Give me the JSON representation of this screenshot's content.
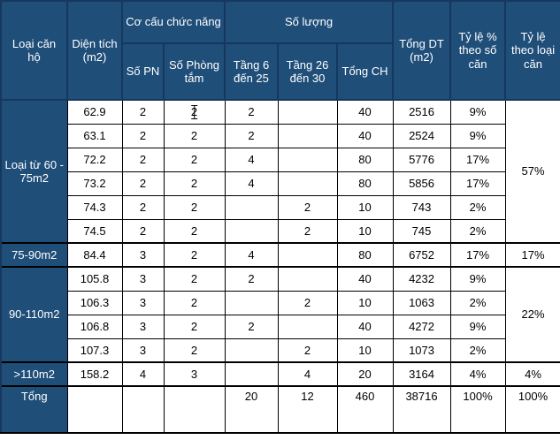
{
  "colors": {
    "header_bg": "#1F4E79",
    "header_border": "#17375E",
    "header_text": "#FFFFFF",
    "grid_border": "#000000",
    "cell_bg": "#FFFFFF",
    "cell_text": "#000000"
  },
  "table": {
    "header": {
      "unit_type": "Loại căn hộ",
      "area": "Diện tích (m2)",
      "function_structure": "Cơ cấu chức năng",
      "bedrooms": "Số PN",
      "bathrooms": "Số Phòng tắm",
      "quantity": "Số lượng",
      "floors_6_25": "Tầng 6 đến 25",
      "floors_26_30": "Tầng 26 đến 30",
      "total_units": "Tổng CH",
      "total_area": "Tổng DT (m2)",
      "pct_by_units": "Tỷ lệ % theo số căn",
      "pct_by_type": "Tỷ lệ theo loại căn"
    },
    "groups": [
      {
        "label": "Loại từ 60 - 75m2",
        "pct_by_type": "57%",
        "rows": [
          {
            "area": "62.9",
            "bedrooms": "2",
            "bathrooms": "2",
            "floors_6_25": "2",
            "floors_26_30": "",
            "total_units": "40",
            "total_area": "2516",
            "pct_units": "9%",
            "edit_caret": true
          },
          {
            "area": "63.1",
            "bedrooms": "2",
            "bathrooms": "2",
            "floors_6_25": "2",
            "floors_26_30": "",
            "total_units": "40",
            "total_area": "2524",
            "pct_units": "9%"
          },
          {
            "area": "72.2",
            "bedrooms": "2",
            "bathrooms": "2",
            "floors_6_25": "4",
            "floors_26_30": "",
            "total_units": "80",
            "total_area": "5776",
            "pct_units": "17%"
          },
          {
            "area": "73.2",
            "bedrooms": "2",
            "bathrooms": "2",
            "floors_6_25": "4",
            "floors_26_30": "",
            "total_units": "80",
            "total_area": "5856",
            "pct_units": "17%"
          },
          {
            "area": "74.3",
            "bedrooms": "2",
            "bathrooms": "2",
            "floors_6_25": "",
            "floors_26_30": "2",
            "total_units": "10",
            "total_area": "743",
            "pct_units": "2%"
          },
          {
            "area": "74.5",
            "bedrooms": "2",
            "bathrooms": "2",
            "floors_6_25": "",
            "floors_26_30": "2",
            "total_units": "10",
            "total_area": "745",
            "pct_units": "2%"
          }
        ]
      },
      {
        "label": "75-90m2",
        "pct_by_type": "17%",
        "rows": [
          {
            "area": "84.4",
            "bedrooms": "3",
            "bathrooms": "2",
            "floors_6_25": "4",
            "floors_26_30": "",
            "total_units": "80",
            "total_area": "6752",
            "pct_units": "17%"
          }
        ]
      },
      {
        "label": "90-110m2",
        "pct_by_type": "22%",
        "rows": [
          {
            "area": "105.8",
            "bedrooms": "3",
            "bathrooms": "2",
            "floors_6_25": "2",
            "floors_26_30": "",
            "total_units": "40",
            "total_area": "4232",
            "pct_units": "9%"
          },
          {
            "area": "106.3",
            "bedrooms": "3",
            "bathrooms": "2",
            "floors_6_25": "",
            "floors_26_30": "2",
            "total_units": "10",
            "total_area": "1063",
            "pct_units": "2%"
          },
          {
            "area": "106.8",
            "bedrooms": "3",
            "bathrooms": "2",
            "floors_6_25": "2",
            "floors_26_30": "",
            "total_units": "40",
            "total_area": "4272",
            "pct_units": "9%"
          },
          {
            "area": "107.3",
            "bedrooms": "3",
            "bathrooms": "2",
            "floors_6_25": "",
            "floors_26_30": "2",
            "total_units": "10",
            "total_area": "1073",
            "pct_units": "2%"
          }
        ]
      },
      {
        "label": ">110m2",
        "pct_by_type": "4%",
        "rows": [
          {
            "area": "158.2",
            "bedrooms": "4",
            "bathrooms": "3",
            "floors_6_25": "",
            "floors_26_30": "4",
            "total_units": "20",
            "total_area": "3164",
            "pct_units": "4%"
          }
        ]
      }
    ],
    "total_row": {
      "label": "Tổng",
      "area": "",
      "bedrooms": "",
      "bathrooms": "",
      "floors_6_25": "20",
      "floors_26_30": "12",
      "total_units": "460",
      "total_area": "38716",
      "pct_units": "100%",
      "pct_by_type": "100%"
    }
  }
}
